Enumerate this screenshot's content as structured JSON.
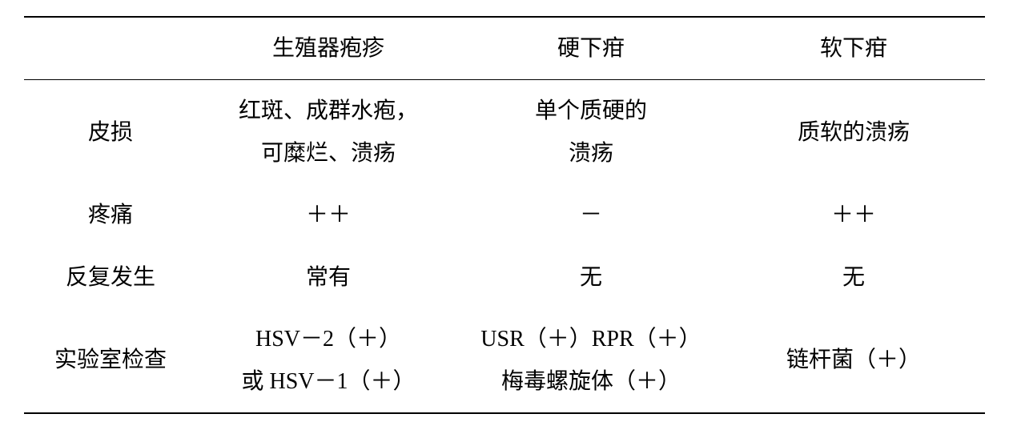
{
  "table": {
    "type": "table",
    "background_color": "#ffffff",
    "text_color": "#000000",
    "font_family": "SimSun",
    "header_fontsize": 28,
    "cell_fontsize": 28,
    "line_height": 1.9,
    "border_color": "#000000",
    "border_top_width": 2,
    "border_header_width": 1.5,
    "border_bottom_width": 2,
    "columns": {
      "label_width_pct": 18,
      "data_width_pct": 27.33,
      "headers": [
        "",
        "生殖器疱疹",
        "硬下疳",
        "软下疳"
      ]
    },
    "rows": [
      {
        "label": "皮损",
        "cells": [
          {
            "line1": "红斑、成群水疱，",
            "line2": "可糜烂、溃疡"
          },
          {
            "line1": "单个质硬的",
            "line2": "溃疡"
          },
          {
            "line1": "质软的溃疡"
          }
        ]
      },
      {
        "label": "疼痛",
        "cells": [
          {
            "line1": "＋＋"
          },
          {
            "line1": "－"
          },
          {
            "line1": "＋＋"
          }
        ]
      },
      {
        "label": "反复发生",
        "cells": [
          {
            "line1": "常有"
          },
          {
            "line1": "无"
          },
          {
            "line1": "无"
          }
        ]
      },
      {
        "label": "实验室检查",
        "cells": [
          {
            "line1": "HSV－2（＋）",
            "line2": "或 HSV－1（＋）"
          },
          {
            "line1": "USR（＋）RPR（＋）",
            "line2": "梅毒螺旋体（＋）"
          },
          {
            "line1": "链杆菌（＋）"
          }
        ]
      }
    ]
  }
}
